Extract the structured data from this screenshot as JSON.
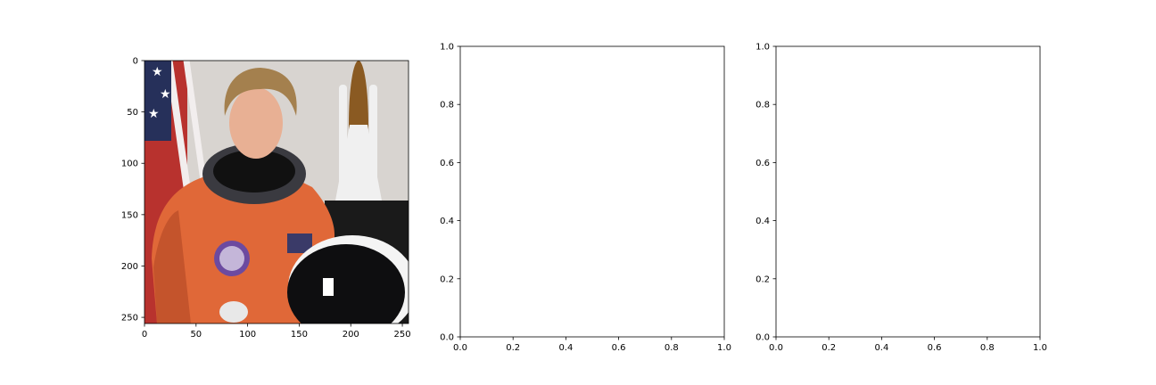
{
  "chart_data": [
    {
      "type": "image",
      "image_name": "astronaut-photo",
      "image_size": [
        256,
        256
      ],
      "xlim": [
        0,
        256
      ],
      "ylim": [
        256,
        0
      ],
      "xticks": [
        0,
        50,
        100,
        150,
        200,
        250
      ],
      "yticks": [
        0,
        50,
        100,
        150,
        200,
        250
      ],
      "xtick_labels": [
        "0",
        "50",
        "100",
        "150",
        "200",
        "250"
      ],
      "ytick_labels": [
        "0",
        "50",
        "100",
        "150",
        "200",
        "250"
      ],
      "colors": {
        "background": "#d8d4d0",
        "suit": "#e06838",
        "suit_shadow": "#b84c28",
        "skin": "#e8b094",
        "hair": "#a4804e",
        "flag_red": "#b8322e",
        "flag_blue": "#26305a",
        "helmet": "#0e0e10",
        "shuttle": "#f0f0f0",
        "tank": "#8a5a22",
        "patch": "#6c4aa0"
      }
    },
    {
      "type": "empty",
      "xlim": [
        0,
        1
      ],
      "ylim": [
        0,
        1
      ],
      "xticks": [
        0,
        0.2,
        0.4,
        0.6,
        0.8,
        1.0
      ],
      "yticks": [
        0,
        0.2,
        0.4,
        0.6,
        0.8,
        1.0
      ],
      "xtick_labels": [
        "0.0",
        "0.2",
        "0.4",
        "0.6",
        "0.8",
        "1.0"
      ],
      "ytick_labels": [
        "0.0",
        "0.2",
        "0.4",
        "0.6",
        "0.8",
        "1.0"
      ]
    },
    {
      "type": "empty",
      "xlim": [
        0,
        1
      ],
      "ylim": [
        0,
        1
      ],
      "xticks": [
        0,
        0.2,
        0.4,
        0.6,
        0.8,
        1.0
      ],
      "yticks": [
        0,
        0.2,
        0.4,
        0.6,
        0.8,
        1.0
      ],
      "xtick_labels": [
        "0.0",
        "0.2",
        "0.4",
        "0.6",
        "0.8",
        "1.0"
      ],
      "ytick_labels": [
        "0.0",
        "0.2",
        "0.4",
        "0.6",
        "0.8",
        "1.0"
      ]
    }
  ]
}
